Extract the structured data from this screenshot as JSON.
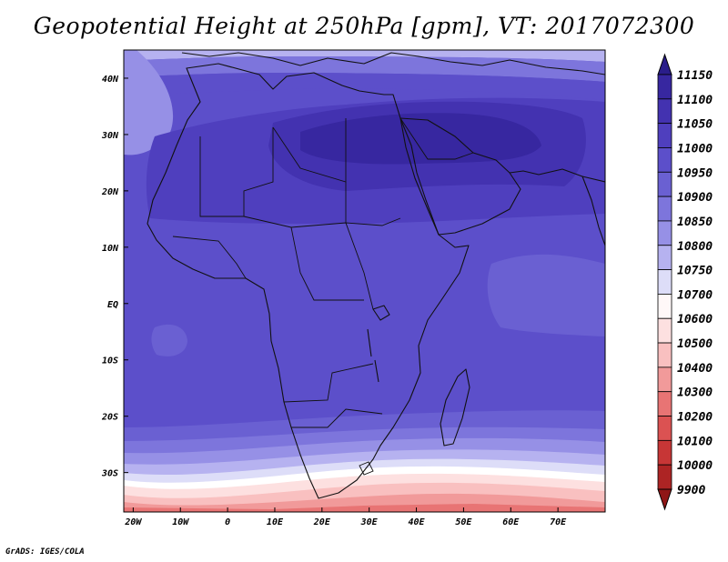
{
  "title": "Geopotential Height at 250hPa [gpm], VT: 2017072300",
  "credit": "GrADS: IGES/COLA",
  "chart_data": {
    "type": "heatmap",
    "title": "Geopotential Height at 250hPa [gpm], VT: 2017072300",
    "variable": "Geopotential Height",
    "level": "250hPa",
    "units": "gpm",
    "valid_time": "2017072300",
    "lon_ticks": [
      "20W",
      "10W",
      "0",
      "10E",
      "20E",
      "30E",
      "40E",
      "50E",
      "60E",
      "70E"
    ],
    "lon_values": [
      -20,
      -10,
      0,
      10,
      20,
      30,
      40,
      50,
      60,
      70
    ],
    "lat_ticks": [
      "40N",
      "30N",
      "20N",
      "10N",
      "EQ",
      "10S",
      "20S",
      "30S"
    ],
    "lat_values": [
      40,
      30,
      20,
      10,
      0,
      -10,
      -20,
      -30
    ],
    "lon_range": [
      -22,
      80
    ],
    "lat_range": [
      -37,
      45
    ],
    "colorbar": {
      "labels": [
        "11150",
        "11100",
        "11050",
        "11000",
        "10950",
        "10900",
        "10850",
        "10800",
        "10750",
        "10700",
        "10600",
        "10500",
        "10400",
        "10300",
        "10200",
        "10100",
        "10000",
        "9900"
      ],
      "colors": [
        "#2a1d8a",
        "#3727a0",
        "#4332b0",
        "#4f3fbe",
        "#5c4fca",
        "#6a60d2",
        "#7d75dc",
        "#9690e6",
        "#b6b2f0",
        "#ddddf8",
        "#fff8f8",
        "#fde0e0",
        "#f9c0c0",
        "#f19a9a",
        "#e87474",
        "#db5252",
        "#c73636",
        "#ad2424",
        "#8f1616"
      ]
    }
  }
}
